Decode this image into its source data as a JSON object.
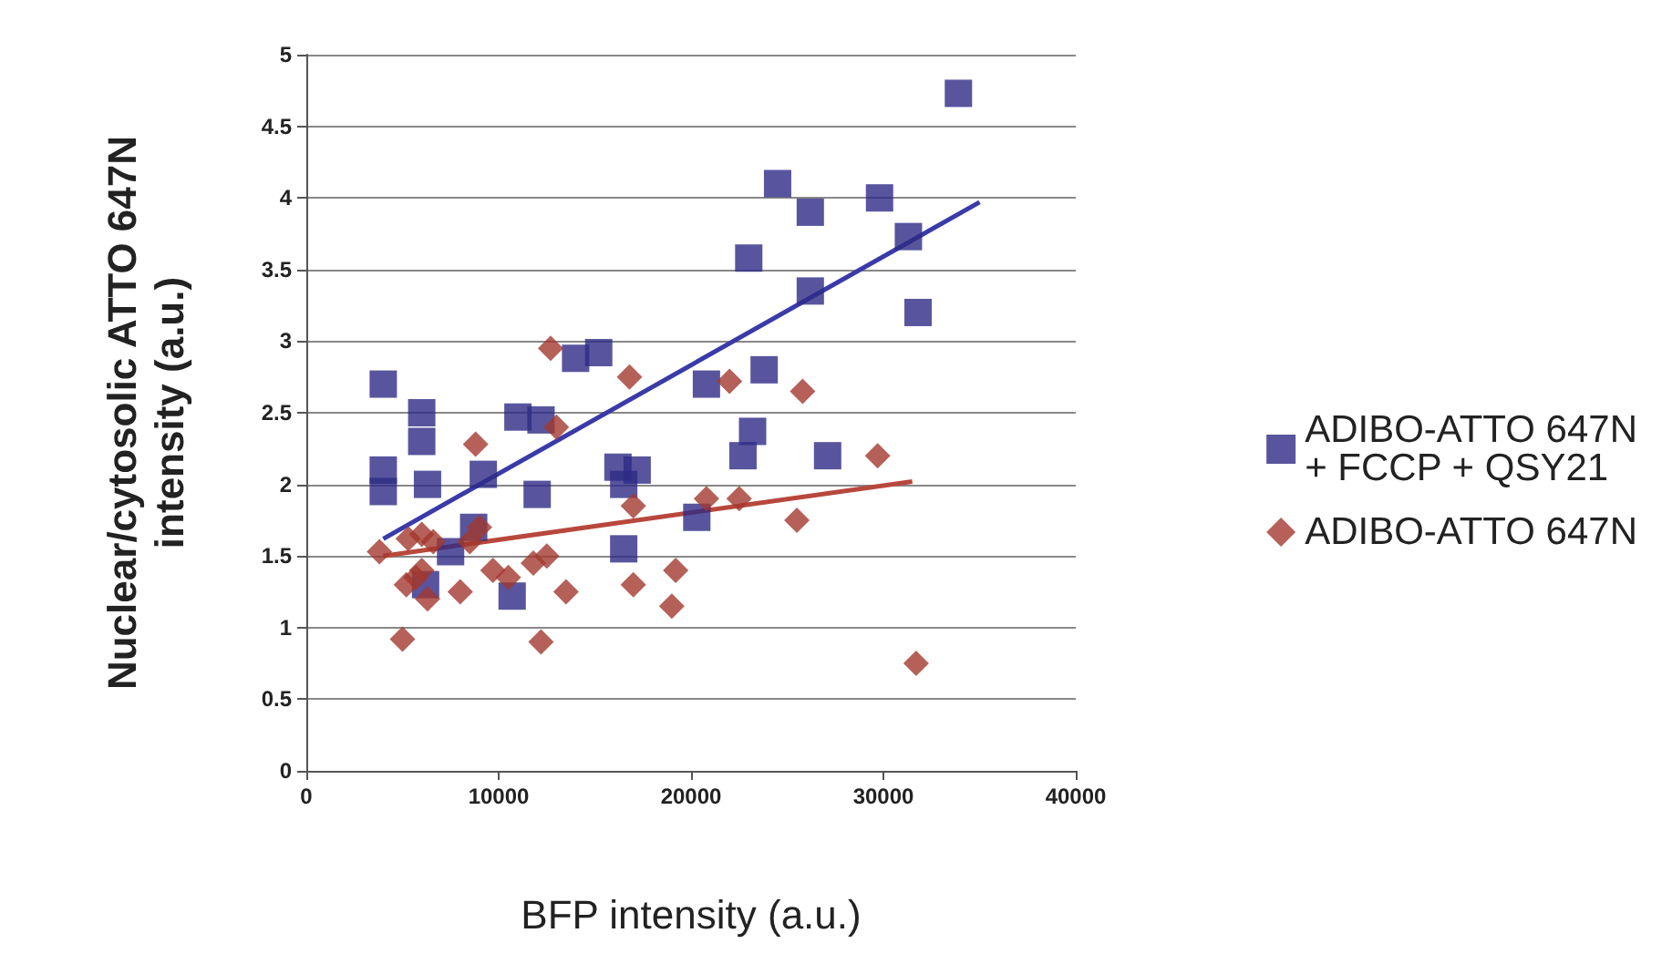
{
  "chart_data": {
    "type": "scatter",
    "xlabel": "BFP intensity (a.u.)",
    "ylabel": "Nuclear/cytosolic ATTO 647N\nintensity (a.u.)",
    "xlim": [
      0,
      40000
    ],
    "xticks": [
      0,
      10000,
      20000,
      30000,
      40000
    ],
    "ylim": [
      0,
      5
    ],
    "yticks": [
      0,
      0.5,
      1,
      1.5,
      2,
      2.5,
      3,
      3.5,
      4,
      4.5,
      5
    ],
    "grid": "y",
    "legend": "right",
    "series": [
      {
        "name": "ADIBO-ATTO 647N\n+ FCCP + QSY21",
        "color": "#2e2a86",
        "marker": "square",
        "x": [
          4000,
          4000,
          4000,
          6000,
          6000,
          6300,
          6200,
          7500,
          9200,
          8700,
          10700,
          11000,
          12200,
          12000,
          14000,
          15200,
          16200,
          16500,
          16500,
          17200,
          20300,
          20800,
          22700,
          23000,
          23200,
          23800,
          24500,
          26200,
          26200,
          27100,
          29800,
          31300,
          31800,
          33900
        ],
        "values": [
          2.7,
          2.1,
          1.95,
          2.5,
          2.3,
          2.0,
          1.3,
          1.53,
          2.07,
          1.7,
          1.22,
          2.47,
          2.45,
          1.93,
          2.88,
          2.92,
          2.12,
          2.0,
          1.55,
          2.1,
          1.77,
          2.7,
          2.2,
          3.58,
          2.37,
          2.8,
          4.1,
          3.9,
          3.35,
          2.2,
          4.0,
          3.73,
          3.2,
          4.73
        ]
      },
      {
        "name": "ADIBO-ATTO 647N",
        "color": "#a3382e",
        "marker": "diamond",
        "x": [
          3800,
          5000,
          5300,
          5200,
          5700,
          6000,
          6000,
          6300,
          6600,
          8000,
          8500,
          8800,
          9000,
          9700,
          10500,
          11800,
          12200,
          12500,
          12700,
          13000,
          13500,
          16800,
          17000,
          17000,
          19000,
          19200,
          20800,
          22000,
          22500,
          25500,
          25800,
          29700,
          31700
        ],
        "values": [
          1.53,
          0.92,
          1.62,
          1.3,
          1.35,
          1.65,
          1.4,
          1.2,
          1.6,
          1.25,
          1.6,
          2.28,
          1.7,
          1.4,
          1.35,
          1.45,
          0.9,
          1.5,
          2.95,
          2.4,
          1.25,
          2.75,
          1.85,
          1.3,
          1.15,
          1.4,
          1.9,
          2.72,
          1.9,
          1.75,
          2.65,
          2.2,
          0.75
        ]
      },
      {
        "type": "line",
        "color": "#3a3aa8",
        "marker": "none",
        "x": [
          4000,
          35000
        ],
        "values": [
          1.62,
          3.97
        ]
      },
      {
        "type": "line",
        "color": "#b8473c",
        "marker": "none",
        "x": [
          4000,
          31500
        ],
        "values": [
          1.5,
          2.02
        ]
      }
    ]
  }
}
